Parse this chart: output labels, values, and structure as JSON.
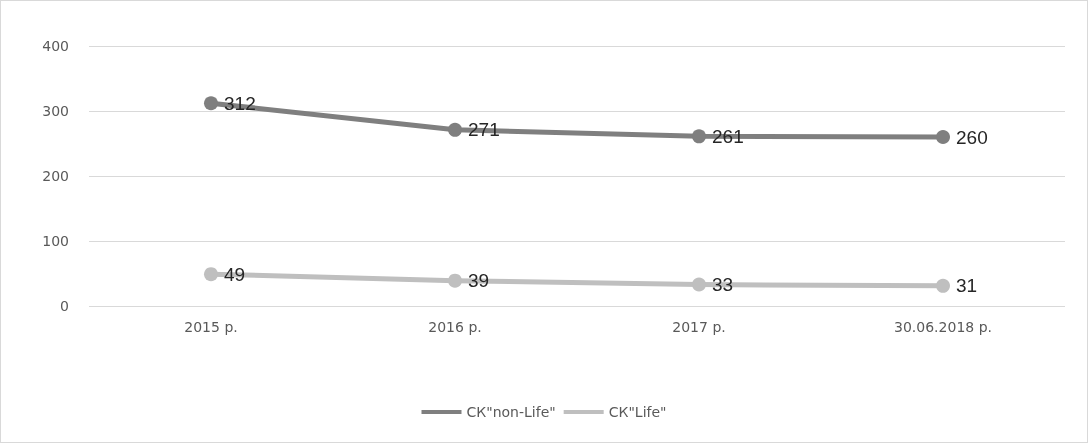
{
  "chart_data": {
    "type": "line",
    "categories": [
      "2015 р.",
      "2016 р.",
      "2017 р.",
      "30.06.2018 р."
    ],
    "series": [
      {
        "name": "СК\"non-Life\"",
        "color": "#7f7f7f",
        "values": [
          312,
          271,
          261,
          260
        ]
      },
      {
        "name": "СК\"Life\"",
        "color": "#bfbfbf",
        "values": [
          49,
          39,
          33,
          31
        ]
      }
    ],
    "ylim": [
      0,
      400
    ],
    "yticks": [
      0,
      100,
      200,
      300,
      400
    ],
    "grid": "y",
    "legend": "bottom",
    "marker": "circle",
    "line_style": "solid",
    "data_labels": true
  }
}
